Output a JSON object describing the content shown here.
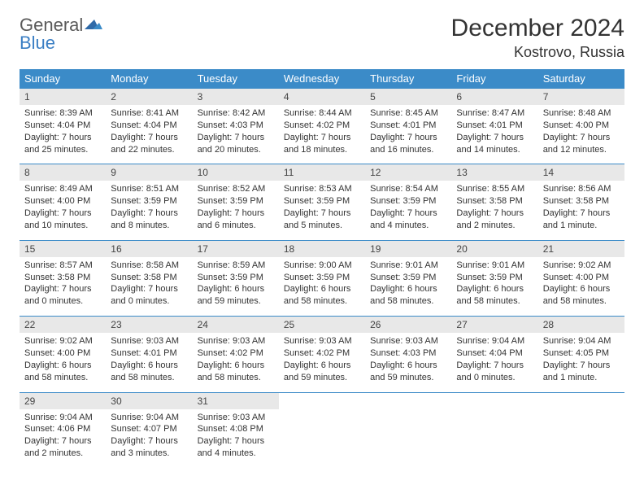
{
  "logo": {
    "text1": "General",
    "text2": "Blue"
  },
  "title": "December 2024",
  "location": "Kostrovo, Russia",
  "colors": {
    "header_bg": "#3b8bc8",
    "header_text": "#ffffff",
    "daynum_bg": "#e8e8e8",
    "row_border": "#3b8bc8",
    "logo_gray": "#5a5a5a",
    "logo_blue": "#3b7fc4"
  },
  "dayHeaders": [
    "Sunday",
    "Monday",
    "Tuesday",
    "Wednesday",
    "Thursday",
    "Friday",
    "Saturday"
  ],
  "weeks": [
    [
      {
        "d": "1",
        "sr": "Sunrise: 8:39 AM",
        "ss": "Sunset: 4:04 PM",
        "dl1": "Daylight: 7 hours",
        "dl2": "and 25 minutes."
      },
      {
        "d": "2",
        "sr": "Sunrise: 8:41 AM",
        "ss": "Sunset: 4:04 PM",
        "dl1": "Daylight: 7 hours",
        "dl2": "and 22 minutes."
      },
      {
        "d": "3",
        "sr": "Sunrise: 8:42 AM",
        "ss": "Sunset: 4:03 PM",
        "dl1": "Daylight: 7 hours",
        "dl2": "and 20 minutes."
      },
      {
        "d": "4",
        "sr": "Sunrise: 8:44 AM",
        "ss": "Sunset: 4:02 PM",
        "dl1": "Daylight: 7 hours",
        "dl2": "and 18 minutes."
      },
      {
        "d": "5",
        "sr": "Sunrise: 8:45 AM",
        "ss": "Sunset: 4:01 PM",
        "dl1": "Daylight: 7 hours",
        "dl2": "and 16 minutes."
      },
      {
        "d": "6",
        "sr": "Sunrise: 8:47 AM",
        "ss": "Sunset: 4:01 PM",
        "dl1": "Daylight: 7 hours",
        "dl2": "and 14 minutes."
      },
      {
        "d": "7",
        "sr": "Sunrise: 8:48 AM",
        "ss": "Sunset: 4:00 PM",
        "dl1": "Daylight: 7 hours",
        "dl2": "and 12 minutes."
      }
    ],
    [
      {
        "d": "8",
        "sr": "Sunrise: 8:49 AM",
        "ss": "Sunset: 4:00 PM",
        "dl1": "Daylight: 7 hours",
        "dl2": "and 10 minutes."
      },
      {
        "d": "9",
        "sr": "Sunrise: 8:51 AM",
        "ss": "Sunset: 3:59 PM",
        "dl1": "Daylight: 7 hours",
        "dl2": "and 8 minutes."
      },
      {
        "d": "10",
        "sr": "Sunrise: 8:52 AM",
        "ss": "Sunset: 3:59 PM",
        "dl1": "Daylight: 7 hours",
        "dl2": "and 6 minutes."
      },
      {
        "d": "11",
        "sr": "Sunrise: 8:53 AM",
        "ss": "Sunset: 3:59 PM",
        "dl1": "Daylight: 7 hours",
        "dl2": "and 5 minutes."
      },
      {
        "d": "12",
        "sr": "Sunrise: 8:54 AM",
        "ss": "Sunset: 3:59 PM",
        "dl1": "Daylight: 7 hours",
        "dl2": "and 4 minutes."
      },
      {
        "d": "13",
        "sr": "Sunrise: 8:55 AM",
        "ss": "Sunset: 3:58 PM",
        "dl1": "Daylight: 7 hours",
        "dl2": "and 2 minutes."
      },
      {
        "d": "14",
        "sr": "Sunrise: 8:56 AM",
        "ss": "Sunset: 3:58 PM",
        "dl1": "Daylight: 7 hours",
        "dl2": "and 1 minute."
      }
    ],
    [
      {
        "d": "15",
        "sr": "Sunrise: 8:57 AM",
        "ss": "Sunset: 3:58 PM",
        "dl1": "Daylight: 7 hours",
        "dl2": "and 0 minutes."
      },
      {
        "d": "16",
        "sr": "Sunrise: 8:58 AM",
        "ss": "Sunset: 3:58 PM",
        "dl1": "Daylight: 7 hours",
        "dl2": "and 0 minutes."
      },
      {
        "d": "17",
        "sr": "Sunrise: 8:59 AM",
        "ss": "Sunset: 3:59 PM",
        "dl1": "Daylight: 6 hours",
        "dl2": "and 59 minutes."
      },
      {
        "d": "18",
        "sr": "Sunrise: 9:00 AM",
        "ss": "Sunset: 3:59 PM",
        "dl1": "Daylight: 6 hours",
        "dl2": "and 58 minutes."
      },
      {
        "d": "19",
        "sr": "Sunrise: 9:01 AM",
        "ss": "Sunset: 3:59 PM",
        "dl1": "Daylight: 6 hours",
        "dl2": "and 58 minutes."
      },
      {
        "d": "20",
        "sr": "Sunrise: 9:01 AM",
        "ss": "Sunset: 3:59 PM",
        "dl1": "Daylight: 6 hours",
        "dl2": "and 58 minutes."
      },
      {
        "d": "21",
        "sr": "Sunrise: 9:02 AM",
        "ss": "Sunset: 4:00 PM",
        "dl1": "Daylight: 6 hours",
        "dl2": "and 58 minutes."
      }
    ],
    [
      {
        "d": "22",
        "sr": "Sunrise: 9:02 AM",
        "ss": "Sunset: 4:00 PM",
        "dl1": "Daylight: 6 hours",
        "dl2": "and 58 minutes."
      },
      {
        "d": "23",
        "sr": "Sunrise: 9:03 AM",
        "ss": "Sunset: 4:01 PM",
        "dl1": "Daylight: 6 hours",
        "dl2": "and 58 minutes."
      },
      {
        "d": "24",
        "sr": "Sunrise: 9:03 AM",
        "ss": "Sunset: 4:02 PM",
        "dl1": "Daylight: 6 hours",
        "dl2": "and 58 minutes."
      },
      {
        "d": "25",
        "sr": "Sunrise: 9:03 AM",
        "ss": "Sunset: 4:02 PM",
        "dl1": "Daylight: 6 hours",
        "dl2": "and 59 minutes."
      },
      {
        "d": "26",
        "sr": "Sunrise: 9:03 AM",
        "ss": "Sunset: 4:03 PM",
        "dl1": "Daylight: 6 hours",
        "dl2": "and 59 minutes."
      },
      {
        "d": "27",
        "sr": "Sunrise: 9:04 AM",
        "ss": "Sunset: 4:04 PM",
        "dl1": "Daylight: 7 hours",
        "dl2": "and 0 minutes."
      },
      {
        "d": "28",
        "sr": "Sunrise: 9:04 AM",
        "ss": "Sunset: 4:05 PM",
        "dl1": "Daylight: 7 hours",
        "dl2": "and 1 minute."
      }
    ],
    [
      {
        "d": "29",
        "sr": "Sunrise: 9:04 AM",
        "ss": "Sunset: 4:06 PM",
        "dl1": "Daylight: 7 hours",
        "dl2": "and 2 minutes."
      },
      {
        "d": "30",
        "sr": "Sunrise: 9:04 AM",
        "ss": "Sunset: 4:07 PM",
        "dl1": "Daylight: 7 hours",
        "dl2": "and 3 minutes."
      },
      {
        "d": "31",
        "sr": "Sunrise: 9:03 AM",
        "ss": "Sunset: 4:08 PM",
        "dl1": "Daylight: 7 hours",
        "dl2": "and 4 minutes."
      },
      null,
      null,
      null,
      null
    ]
  ]
}
